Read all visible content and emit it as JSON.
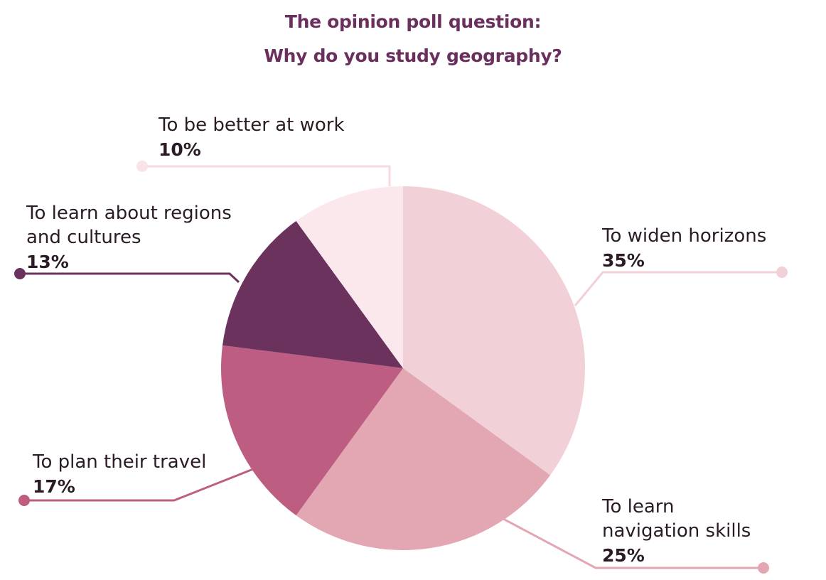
{
  "title": {
    "line1": "The opinion poll question:",
    "line2": "Why do you study geography?"
  },
  "chart_data": {
    "type": "pie",
    "start_angle_deg": 0,
    "direction": "clockwise",
    "slices": [
      {
        "label_lines": [
          "To widen horizons"
        ],
        "value": 35,
        "value_label": "35%",
        "color": "#f2d0d7"
      },
      {
        "label_lines": [
          "To learn",
          "navigation skills"
        ],
        "value": 25,
        "value_label": "25%",
        "color": "#e3a6b3"
      },
      {
        "label_lines": [
          "To plan their travel"
        ],
        "value": 17,
        "value_label": "17%",
        "color": "#bd5d81"
      },
      {
        "label_lines": [
          "To learn about regions",
          "and cultures"
        ],
        "value": 13,
        "value_label": "13%",
        "color": "#6a325d"
      },
      {
        "label_lines": [
          "To be better at work"
        ],
        "value": 10,
        "value_label": "10%",
        "color": "#fae8ec"
      }
    ],
    "legend": "none"
  }
}
